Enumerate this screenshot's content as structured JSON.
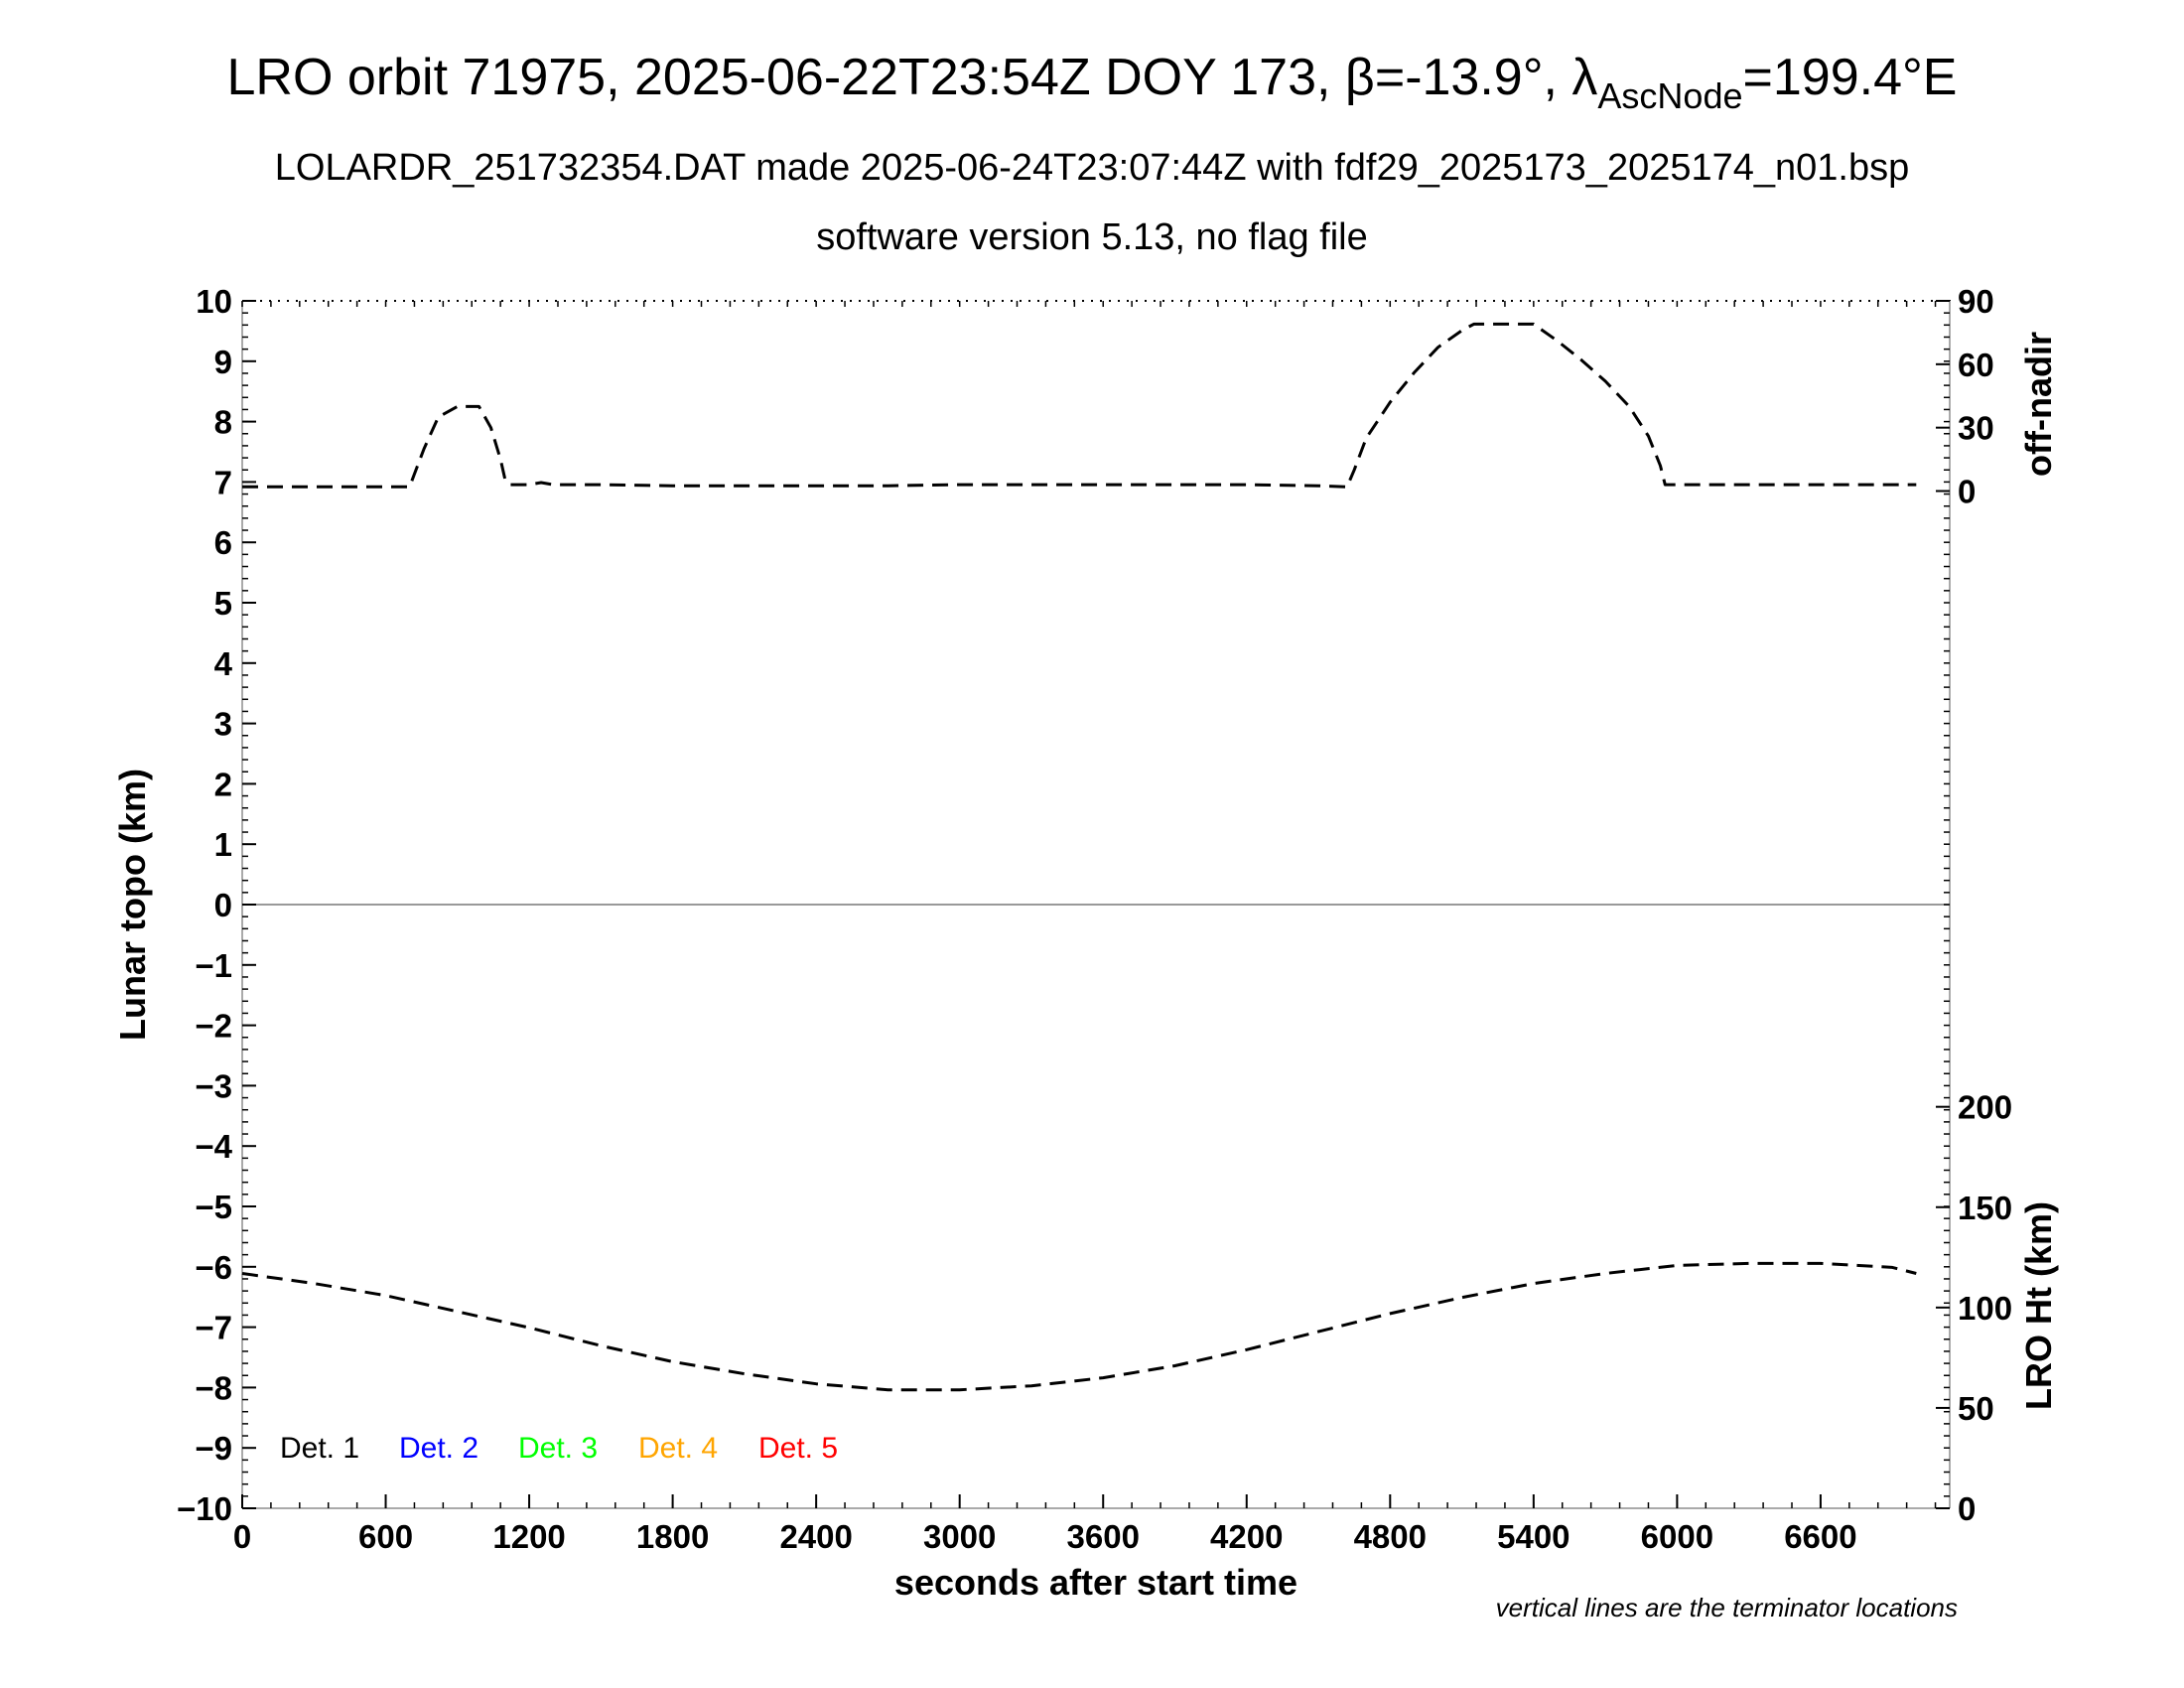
{
  "header": {
    "title_prefix": "LRO orbit 71975, 2025-06-22T23:54Z DOY 173, β=-13.9°, λ",
    "title_subscript": "AscNode",
    "title_suffix": "=199.4°E",
    "subtitle": "LOLARDR_251732354.DAT made 2025-06-24T23:07:44Z with fdf29_2025173_2025174_n01.bsp",
    "subtitle2": "software version 5.13, no flag file"
  },
  "chart_data": {
    "type": "line",
    "xlabel": "seconds after start time",
    "ylabel_left": "Lunar topo (km)",
    "ylabel_right_top": "off-nadir",
    "ylabel_right_bottom": "LRO Ht (km)",
    "xlim": [
      0,
      7140
    ],
    "ylim_left": [
      -10,
      10
    ],
    "x_ticks": [
      "0",
      "600",
      "1200",
      "1800",
      "2400",
      "3000",
      "3600",
      "4200",
      "4800",
      "5400",
      "6000",
      "6600"
    ],
    "y_ticks_left": [
      "10",
      "9",
      "8",
      "7",
      "6",
      "5",
      "4",
      "3",
      "2",
      "1",
      "0",
      "−1",
      "−2",
      "−3",
      "−4",
      "−5",
      "−6",
      "−7",
      "−8",
      "−9",
      "−10"
    ],
    "y_ticks_right_top": [
      "90",
      "60",
      "30",
      "0"
    ],
    "y_ticks_right_bottom": [
      "200",
      "150",
      "100",
      "50",
      "0"
    ],
    "note": "vertical lines are the terminator locations",
    "legend": [
      {
        "label": "Det. 1",
        "color": "#000000"
      },
      {
        "label": "Det. 2",
        "color": "#0000ff"
      },
      {
        "label": "Det. 3",
        "color": "#00ff00"
      },
      {
        "label": "Det. 4",
        "color": "#ffa500"
      },
      {
        "label": "Det. 5",
        "color": "#ff0000"
      }
    ],
    "legend_placement": "bottom-left",
    "series": [
      {
        "axis": "off-nadir",
        "points": [
          [
            0,
            2
          ],
          [
            300,
            2
          ],
          [
            500,
            2
          ],
          [
            700,
            2
          ],
          [
            720,
            8
          ],
          [
            760,
            20
          ],
          [
            820,
            35
          ],
          [
            900,
            40
          ],
          [
            990,
            40
          ],
          [
            1040,
            30
          ],
          [
            1080,
            15
          ],
          [
            1100,
            5
          ],
          [
            1120,
            3
          ],
          [
            1200,
            3
          ],
          [
            1250,
            4
          ],
          [
            1300,
            3
          ],
          [
            1500,
            3
          ],
          [
            1800,
            2.5
          ],
          [
            2100,
            2.5
          ],
          [
            2400,
            2.5
          ],
          [
            2700,
            2.5
          ],
          [
            3000,
            3
          ],
          [
            3300,
            3
          ],
          [
            3600,
            3
          ],
          [
            3900,
            3
          ],
          [
            4200,
            3
          ],
          [
            4500,
            2.5
          ],
          [
            4620,
            2
          ],
          [
            4650,
            10
          ],
          [
            4700,
            25
          ],
          [
            4800,
            42
          ],
          [
            4900,
            56
          ],
          [
            5000,
            68
          ],
          [
            5100,
            76
          ],
          [
            5150,
            79
          ],
          [
            5400,
            79
          ],
          [
            5500,
            71
          ],
          [
            5600,
            62
          ],
          [
            5700,
            52
          ],
          [
            5800,
            40
          ],
          [
            5880,
            26
          ],
          [
            5930,
            12
          ],
          [
            5950,
            3
          ],
          [
            6100,
            3
          ],
          [
            6400,
            3
          ],
          [
            6700,
            3
          ],
          [
            7000,
            3
          ]
        ]
      },
      {
        "axis": "LRO Ht",
        "points": [
          [
            0,
            117
          ],
          [
            300,
            112
          ],
          [
            600,
            106
          ],
          [
            900,
            98
          ],
          [
            1200,
            90
          ],
          [
            1500,
            81
          ],
          [
            1800,
            73
          ],
          [
            2100,
            67
          ],
          [
            2400,
            62
          ],
          [
            2700,
            59
          ],
          [
            3000,
            59
          ],
          [
            3300,
            61
          ],
          [
            3600,
            65
          ],
          [
            3900,
            71
          ],
          [
            4200,
            79
          ],
          [
            4500,
            88
          ],
          [
            4800,
            97
          ],
          [
            5100,
            105
          ],
          [
            5400,
            112
          ],
          [
            5700,
            117
          ],
          [
            6000,
            121
          ],
          [
            6300,
            122
          ],
          [
            6600,
            122
          ],
          [
            6900,
            120
          ],
          [
            7000,
            117
          ]
        ]
      }
    ]
  }
}
